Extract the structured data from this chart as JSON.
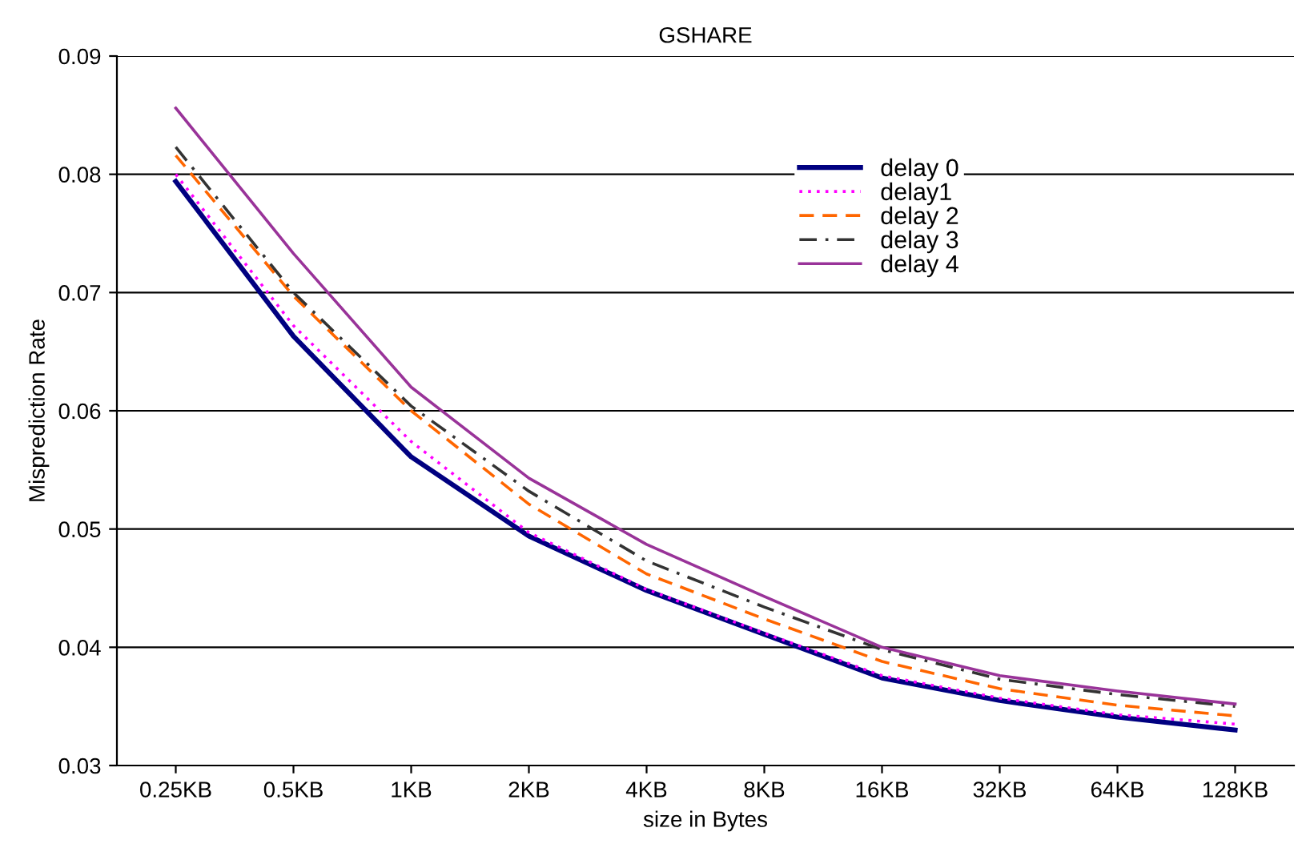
{
  "chart_data": {
    "type": "line",
    "title": "GSHARE",
    "xlabel": "size in Bytes",
    "ylabel": "Misprediction Rate",
    "categories": [
      "0.25KB",
      "0.5KB",
      "1KB",
      "2KB",
      "4KB",
      "8KB",
      "16KB",
      "32KB",
      "64KB",
      "128KB"
    ],
    "series": [
      {
        "name": "delay 0",
        "color": "#000080",
        "line_style": "solid",
        "values": [
          0.0794,
          0.0663,
          0.0561,
          0.0494,
          0.0448,
          0.0411,
          0.0374,
          0.0355,
          0.0341,
          0.033
        ]
      },
      {
        "name": "delay1",
        "color": "#ff00ff",
        "line_style": "dotted",
        "values": [
          0.08,
          0.0672,
          0.0574,
          0.0497,
          0.0449,
          0.0412,
          0.0376,
          0.0357,
          0.0343,
          0.0335
        ]
      },
      {
        "name": "delay 2",
        "color": "#ff6600",
        "line_style": "dashed",
        "values": [
          0.0816,
          0.0697,
          0.06,
          0.0521,
          0.0462,
          0.0424,
          0.0388,
          0.0365,
          0.0351,
          0.0342
        ]
      },
      {
        "name": "delay 3",
        "color": "#333333",
        "line_style": "dashdot",
        "values": [
          0.0823,
          0.07,
          0.0604,
          0.0532,
          0.0473,
          0.0434,
          0.0398,
          0.0373,
          0.036,
          0.035
        ]
      },
      {
        "name": "delay 4",
        "color": "#993399",
        "line_style": "solid",
        "values": [
          0.0856,
          0.0733,
          0.062,
          0.0543,
          0.0487,
          0.0443,
          0.04,
          0.0376,
          0.0363,
          0.0352
        ]
      }
    ],
    "ylim": [
      0.03,
      0.09
    ],
    "yticks": [
      0.03,
      0.04,
      0.05,
      0.06,
      0.07,
      0.08,
      0.09
    ],
    "grid": "y",
    "legend": "top right",
    "marker": "none"
  }
}
